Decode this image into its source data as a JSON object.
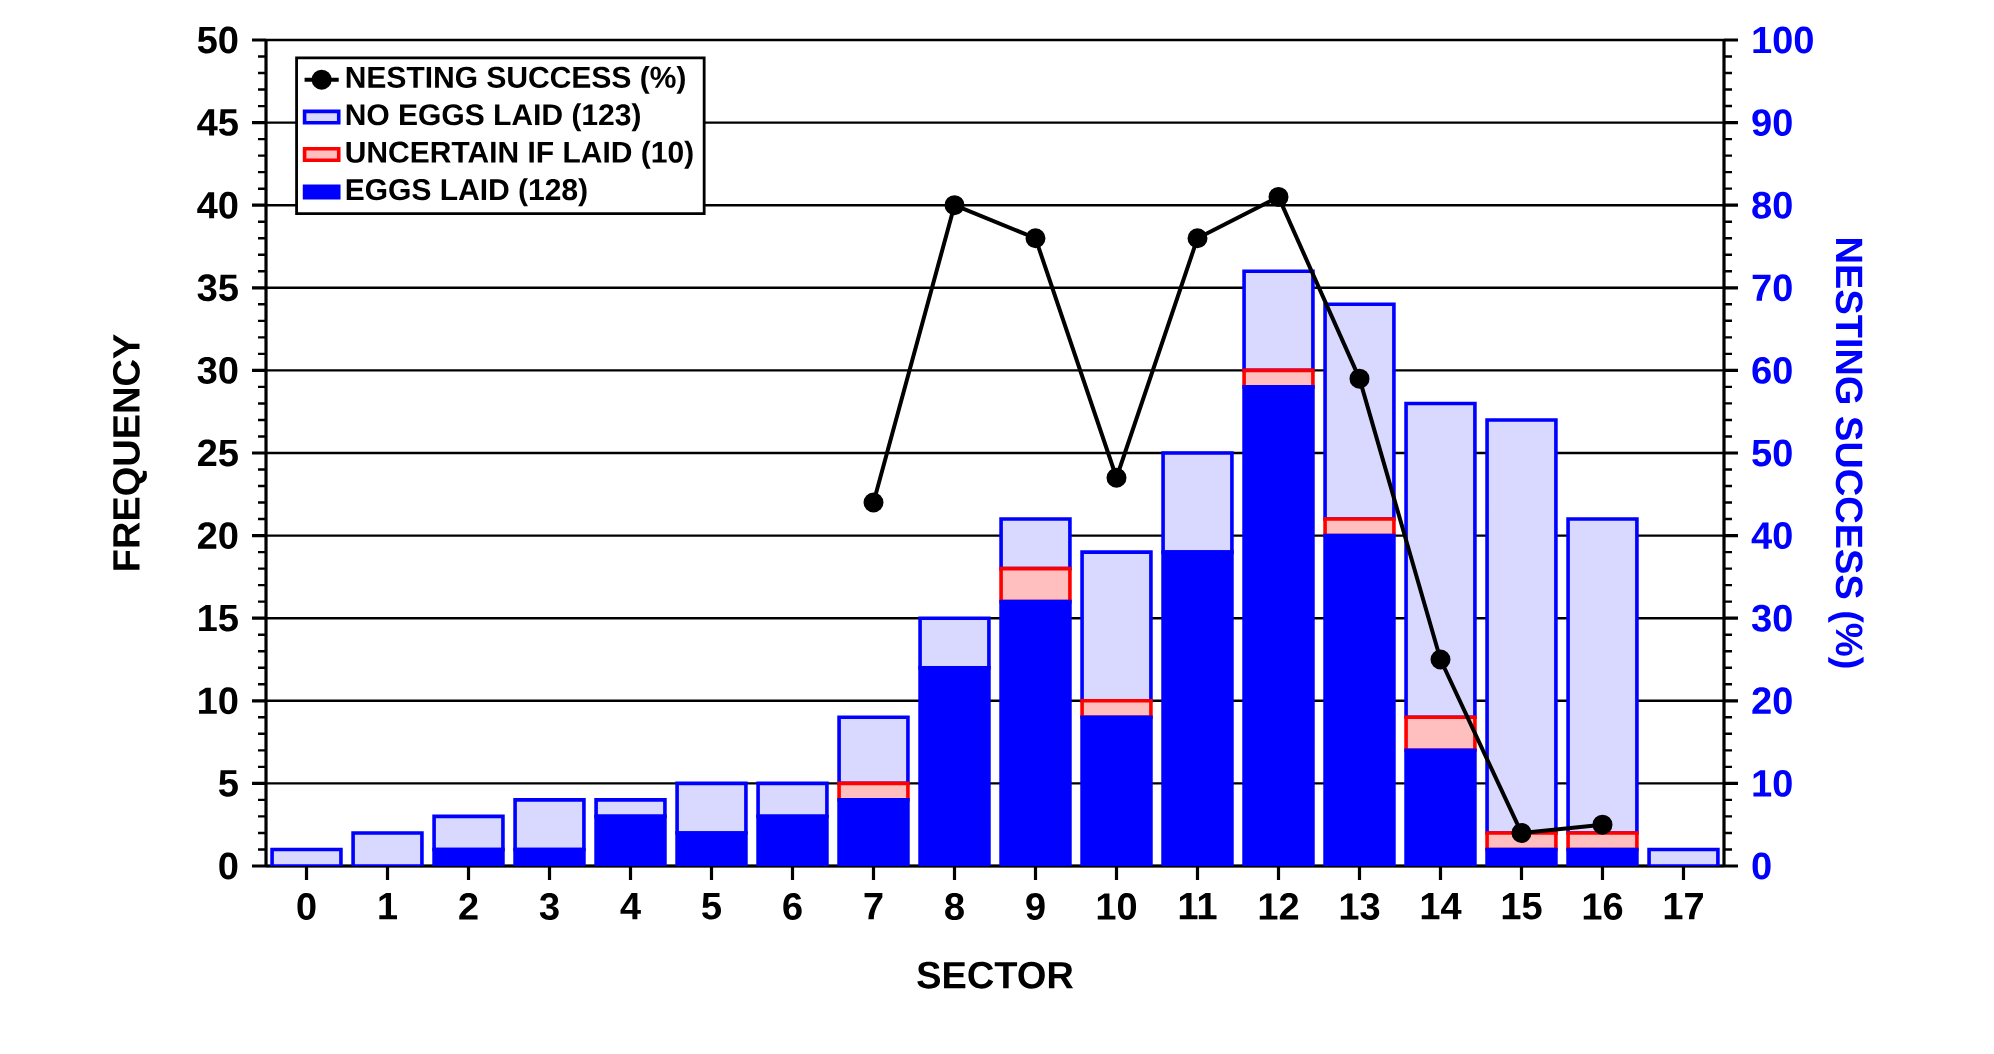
{
  "chart_data": {
    "type": "bar",
    "stacked": true,
    "xlabel": "SECTOR",
    "ylabel": "FREQUENCY",
    "y2label": "NESTING SUCCESS (%)",
    "categories": [
      "0",
      "1",
      "2",
      "3",
      "4",
      "5",
      "6",
      "7",
      "8",
      "9",
      "10",
      "11",
      "12",
      "13",
      "14",
      "15",
      "16",
      "17"
    ],
    "series": [
      {
        "name": "EGGS LAID (128)",
        "color": "#0000ff",
        "values": [
          0,
          0,
          1,
          1,
          3,
          2,
          3,
          4,
          12,
          16,
          9,
          19,
          29,
          20,
          7,
          1,
          1,
          0
        ]
      },
      {
        "name": "UNCERTAIN IF LAID (10)",
        "color": "#ffbfbf",
        "values": [
          0,
          0,
          0,
          0,
          0,
          0,
          0,
          1,
          0,
          2,
          1,
          0,
          1,
          1,
          2,
          1,
          1,
          0
        ]
      },
      {
        "name": "NO EGGS LAID (123)",
        "color": "#d9d9ff",
        "values": [
          1,
          2,
          2,
          3,
          1,
          3,
          2,
          4,
          3,
          3,
          9,
          6,
          6,
          13,
          19,
          25,
          19,
          1
        ]
      },
      {
        "name": "NESTING SUCCESS (%)",
        "type": "line",
        "axis": "y2",
        "color": "#000000",
        "marker": "circle",
        "values": [
          null,
          null,
          null,
          null,
          null,
          null,
          null,
          44,
          80,
          76,
          47,
          76,
          81,
          59,
          25,
          4,
          5,
          null
        ]
      }
    ],
    "ylim": [
      0,
      50
    ],
    "yticks": [
      0,
      5,
      10,
      15,
      20,
      25,
      30,
      35,
      40,
      45,
      50
    ],
    "y2lim": [
      0,
      100
    ],
    "y2ticks": [
      0,
      10,
      20,
      30,
      40,
      50,
      60,
      70,
      80,
      90,
      100
    ],
    "grid": "y",
    "legend": "top left"
  }
}
